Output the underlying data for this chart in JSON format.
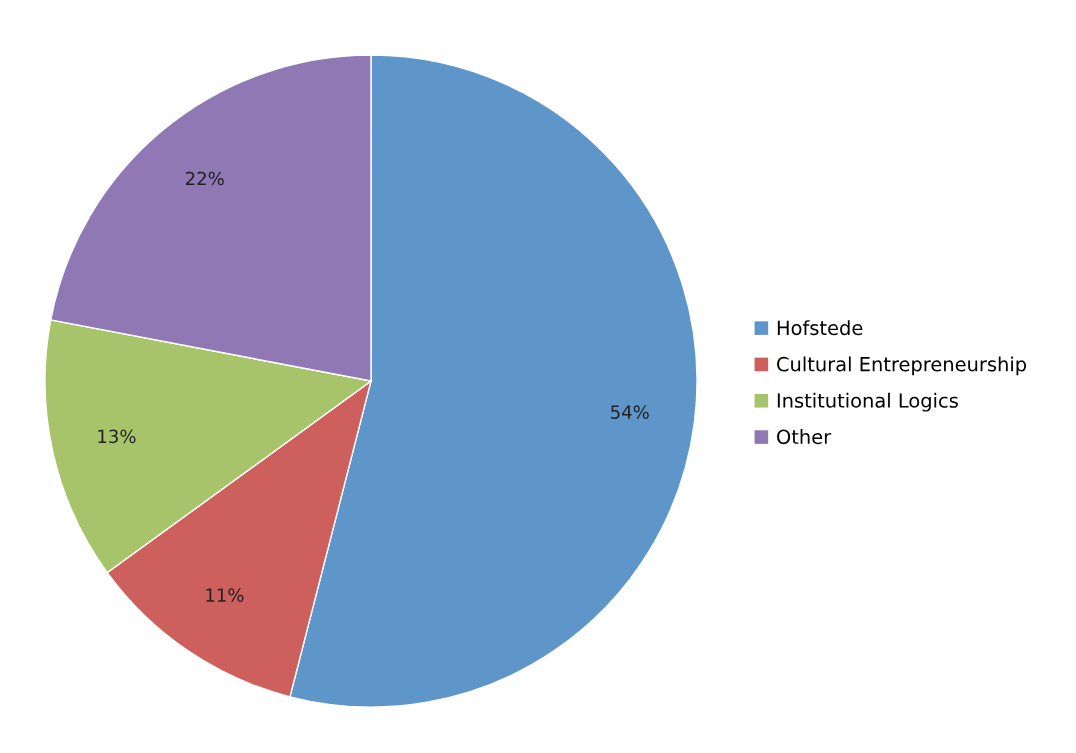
{
  "chart_data": {
    "type": "pie",
    "categories": [
      "Hofstede",
      "Cultural Entrepreneurship",
      "Institutional Logics",
      "Other"
    ],
    "values": [
      54,
      11,
      13,
      22
    ],
    "colors": [
      "#5f96c9",
      "#cd605c",
      "#a8c46a",
      "#8f78b3"
    ],
    "value_labels": [
      "54%",
      "11%",
      "13%",
      "22%"
    ],
    "legend": "right"
  }
}
